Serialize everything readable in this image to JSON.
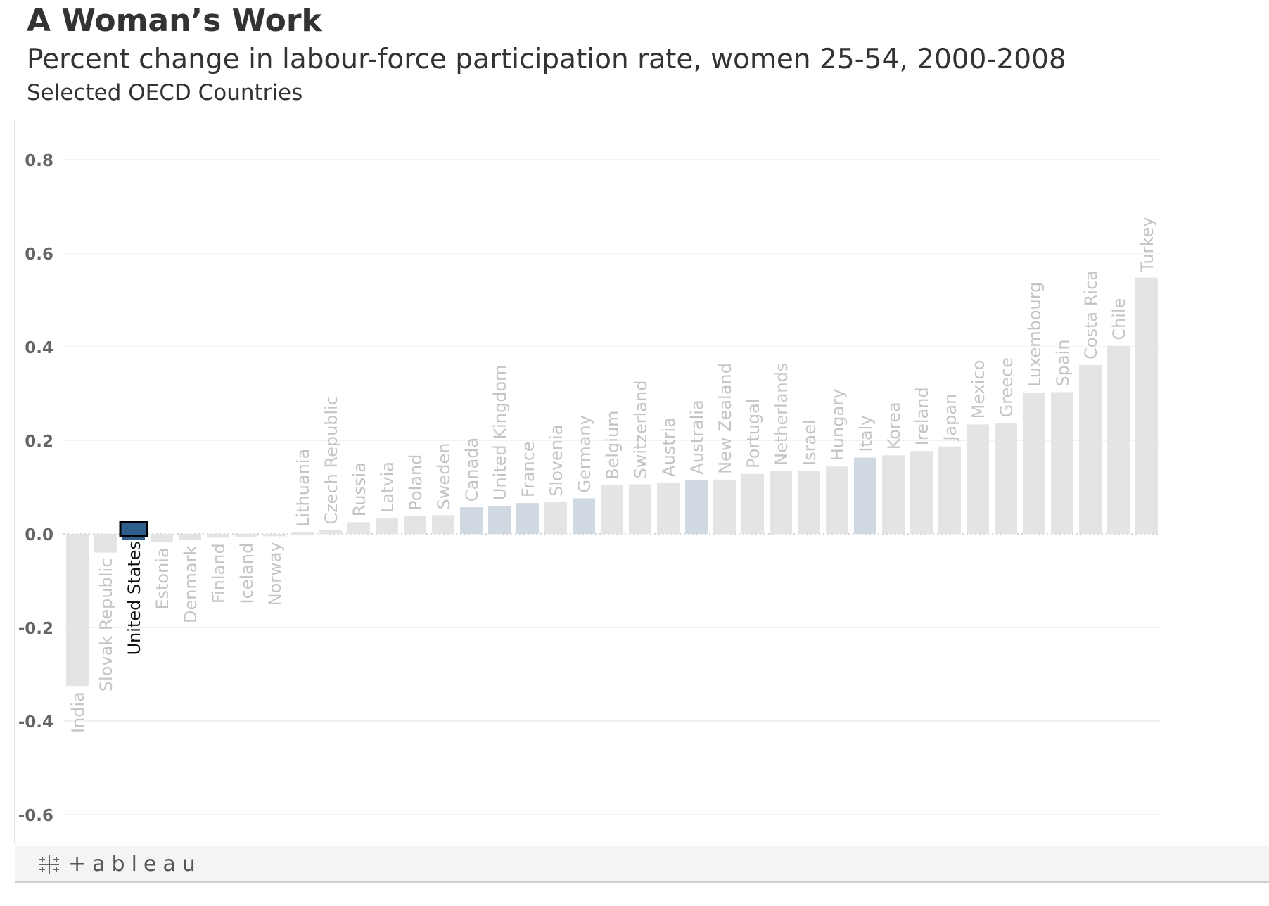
{
  "header": {
    "title": "A Woman’s Work",
    "subtitle": "Percent change in labour-force participation rate, women 25-54, 2000-2008",
    "subtitle2": "Selected OECD Countries"
  },
  "footer": {
    "logo_text": "+ableau",
    "logo_icon": "tableau-cross-icon"
  },
  "chart_data": {
    "type": "bar",
    "ylim": [
      -0.65,
      0.86
    ],
    "yticks": [
      -0.6,
      -0.4,
      -0.2,
      0.0,
      0.2,
      0.4,
      0.6,
      0.8
    ],
    "ytick_labels": [
      "-0.6",
      "-0.4",
      "-0.2",
      "0.0",
      "0.2",
      "0.4",
      "0.6",
      "0.8"
    ],
    "grid": true,
    "categories": [
      "India",
      "Slovak Republic",
      "United States",
      "Estonia",
      "Denmark",
      "Finland",
      "Iceland",
      "Norway",
      "Lithuania",
      "Czech Republic",
      "Russia",
      "Latvia",
      "Poland",
      "Sweden",
      "Canada",
      "United Kingdom",
      "France",
      "Slovenia",
      "Germany",
      "Belgium",
      "Switzerland",
      "Austria",
      "Australia",
      "New Zealand",
      "Portugal",
      "Netherlands",
      "Israel",
      "Hungary",
      "Italy",
      "Korea",
      "Ireland",
      "Japan",
      "Mexico",
      "Greece",
      "Luxembourg",
      "Spain",
      "Costa Rica",
      "Chile",
      "Turkey"
    ],
    "values": [
      -0.325,
      -0.04,
      -0.012,
      -0.017,
      -0.013,
      -0.008,
      -0.007,
      -0.005,
      0.003,
      0.008,
      0.025,
      0.033,
      0.038,
      0.04,
      0.057,
      0.06,
      0.066,
      0.068,
      0.076,
      0.104,
      0.106,
      0.11,
      0.115,
      0.116,
      0.128,
      0.134,
      0.134,
      0.144,
      0.163,
      0.168,
      0.177,
      0.187,
      0.234,
      0.237,
      0.302,
      0.303,
      0.361,
      0.402,
      0.548
    ],
    "groups": [
      "other",
      "other",
      "selected",
      "other",
      "other",
      "other",
      "other",
      "other",
      "other",
      "other",
      "other",
      "other",
      "other",
      "other",
      "peer",
      "peer",
      "peer",
      "other",
      "peer",
      "other",
      "other",
      "other",
      "peer",
      "other",
      "other",
      "other",
      "other",
      "other",
      "peer",
      "other",
      "other",
      "other",
      "other",
      "other",
      "other",
      "other",
      "other",
      "other",
      "other"
    ],
    "colors": {
      "other": "#e4e4e4",
      "peer": "#d0d9e2",
      "selected": "#2f5e8c",
      "other_label": "#c4c4c4",
      "selected_label": "#111111"
    }
  }
}
